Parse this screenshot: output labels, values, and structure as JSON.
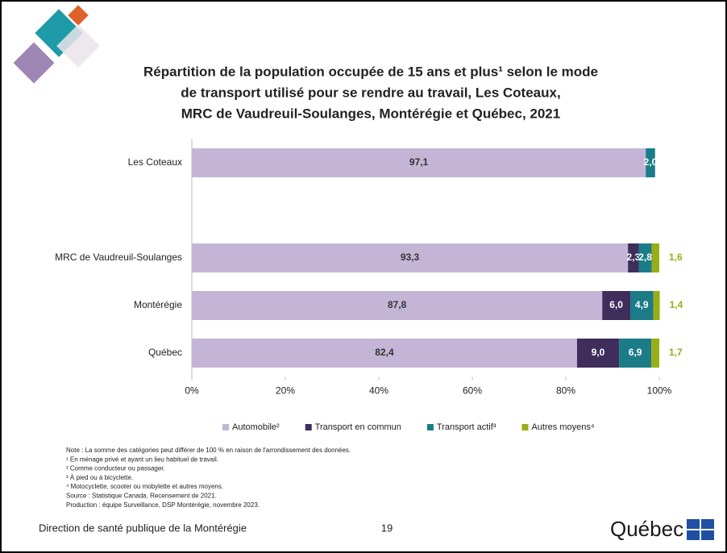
{
  "chart_data": {
    "type": "stacked-barh",
    "title": [
      "Répartition de la population occupée de 15 ans et plus¹ selon le mode",
      "de transport utilisé pour se rendre au travail, Les Coteaux,",
      "MRC de Vaudreuil-Soulanges, Montérégie et Québec, 2021"
    ],
    "categories": [
      "Les Coteaux",
      null,
      "MRC de Vaudreuil-Soulanges",
      "Montérégie",
      "Québec"
    ],
    "series": [
      {
        "name": "Automobile²",
        "color": "#c4b5d6",
        "values": [
          97.1,
          null,
          93.3,
          87.8,
          82.4
        ],
        "value_labels": [
          "97,1",
          null,
          "93,3",
          "87,8",
          "82,4"
        ]
      },
      {
        "name": "Transport en commun",
        "color": "#3f2d5c",
        "values": [
          null,
          null,
          2.3,
          6.0,
          9.0
        ],
        "value_labels": [
          null,
          null,
          "2,3",
          "6,0",
          "9,0"
        ]
      },
      {
        "name": "Transport actif³",
        "color": "#1b7c88",
        "values": [
          2.0,
          null,
          2.8,
          4.9,
          6.9
        ],
        "value_labels": [
          "2,0",
          null,
          "2,8",
          "4,9",
          "6,9"
        ]
      },
      {
        "name": "Autres moyens⁴",
        "color": "#9aad14",
        "values": [
          null,
          null,
          1.6,
          1.4,
          1.7
        ],
        "value_labels": [
          null,
          null,
          "1,6",
          "1,4",
          "1,7"
        ]
      }
    ],
    "xlim": [
      0,
      100
    ],
    "xticks": [
      {
        "value": 0,
        "label": "0%"
      },
      {
        "value": 20,
        "label": "20%"
      },
      {
        "value": 40,
        "label": "40%"
      },
      {
        "value": 60,
        "label": "60%"
      },
      {
        "value": 80,
        "label": "80%"
      },
      {
        "value": 100,
        "label": "100%"
      }
    ],
    "legend": "bottom"
  },
  "notes": [
    "Note : La somme des catégories peut différer de 100 % en raison de l'arrondissement des données.",
    "¹ En ménage privé et ayant un lieu habituel de travail.",
    "² Comme conducteur ou passager.",
    "³ À pied ou à bicyclette.",
    "⁴ Motocyclette, scooter ou mobylette et autres moyens.",
    "Source : Statistique Canada, Recensement de 2021.",
    "Production : équipe Surveillance, DSP Montérégie, novembre 2023."
  ],
  "footer": {
    "organization": "Direction de santé publique de la Montérégie",
    "page": "19",
    "logo": "Québec"
  }
}
